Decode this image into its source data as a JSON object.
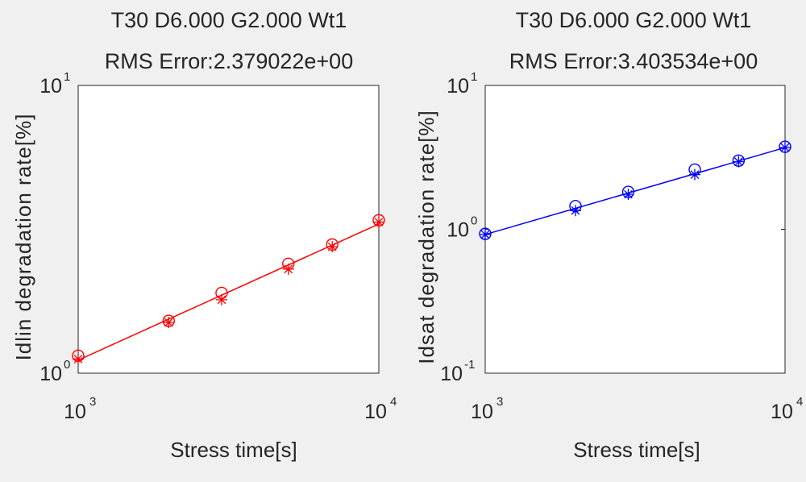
{
  "chart_data": [
    {
      "type": "line",
      "title": "T30 D6.000 G2.000 Wt1",
      "subtitle": "RMS Error:2.379022e+00",
      "xlabel": "Stress time[s]",
      "ylabel": "Idlin degradation rate[%]",
      "xscale": "log",
      "yscale": "log",
      "xlim": [
        1000,
        10000
      ],
      "ylim": [
        1,
        10
      ],
      "x_ticks": [
        {
          "base": "10",
          "exp": "3",
          "value": 1000
        },
        {
          "base": "10",
          "exp": "4",
          "value": 10000
        }
      ],
      "y_ticks": [
        {
          "base": "10",
          "exp": "0",
          "value": 1
        },
        {
          "base": "10",
          "exp": "1",
          "value": 10
        }
      ],
      "color": "#ff0000",
      "grid": false,
      "series": [
        {
          "marker": "circle",
          "style": "markers",
          "x": [
            1000,
            2000,
            3000,
            5000,
            7000,
            10000
          ],
          "y": [
            1.15,
            1.52,
            1.9,
            2.4,
            2.8,
            3.4
          ]
        },
        {
          "marker": "star",
          "style": "markers",
          "x": [
            1000,
            2000,
            3000,
            5000,
            7000,
            10000
          ],
          "y": [
            1.12,
            1.5,
            1.8,
            2.3,
            2.75,
            3.35
          ]
        },
        {
          "marker": "none",
          "style": "line",
          "x": [
            1000,
            10000
          ],
          "y": [
            1.11,
            3.3
          ]
        }
      ]
    },
    {
      "type": "line",
      "title": "T30 D6.000 G2.000 Wt1",
      "subtitle": "RMS Error:3.403534e+00",
      "xlabel": "Stress time[s]",
      "ylabel": "Idsat degradation rate[%]",
      "xscale": "log",
      "yscale": "log",
      "xlim": [
        1000,
        10000
      ],
      "ylim": [
        0.1,
        10
      ],
      "x_ticks": [
        {
          "base": "10",
          "exp": "3",
          "value": 1000
        },
        {
          "base": "10",
          "exp": "4",
          "value": 10000
        }
      ],
      "y_ticks": [
        {
          "base": "10",
          "exp": "-1",
          "value": 0.1
        },
        {
          "base": "10",
          "exp": "0",
          "value": 1
        },
        {
          "base": "10",
          "exp": "1",
          "value": 10
        }
      ],
      "color": "#0000ff",
      "grid": false,
      "series": [
        {
          "marker": "circle",
          "style": "markers",
          "x": [
            1000,
            2000,
            3000,
            5000,
            7000,
            10000
          ],
          "y": [
            0.93,
            1.45,
            1.82,
            2.6,
            3.0,
            3.75
          ]
        },
        {
          "marker": "star",
          "style": "markers",
          "x": [
            1000,
            2000,
            3000,
            5000,
            7000,
            10000
          ],
          "y": [
            0.92,
            1.35,
            1.75,
            2.4,
            2.95,
            3.7
          ]
        },
        {
          "marker": "none",
          "style": "line",
          "x": [
            1000,
            10000
          ],
          "y": [
            0.92,
            3.7
          ]
        }
      ]
    }
  ]
}
